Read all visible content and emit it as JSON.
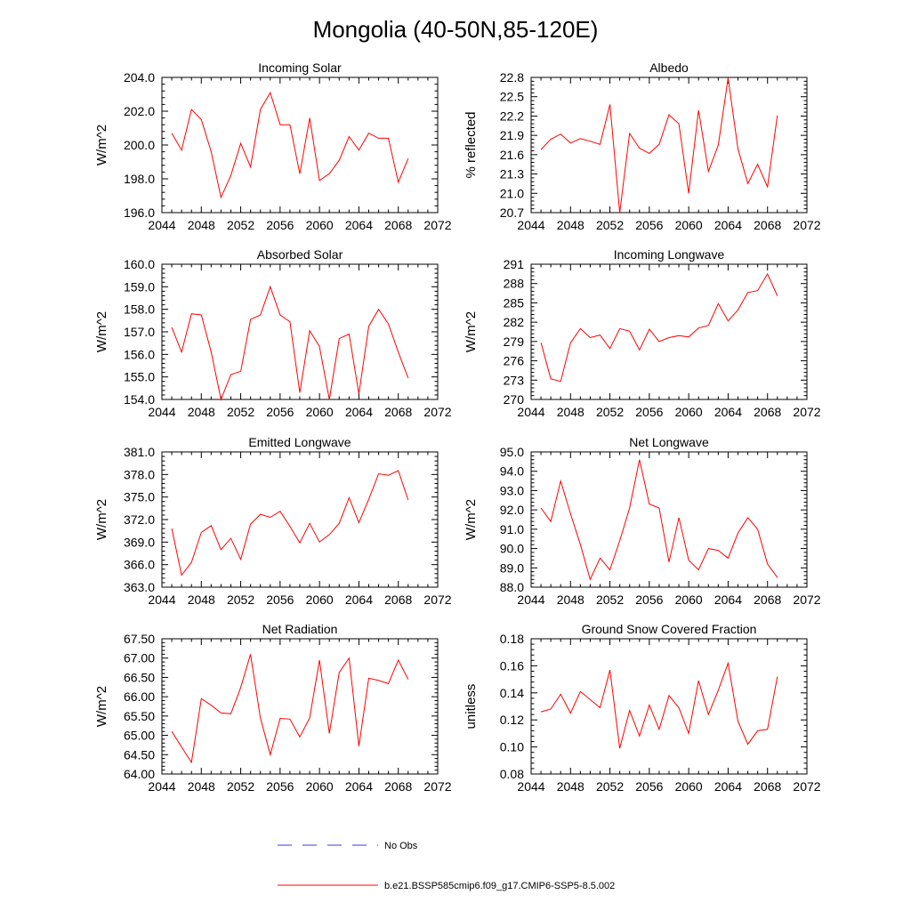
{
  "title": "Mongolia (40-50N,85-120E)",
  "legend": [
    {
      "label": "No Obs",
      "color": "#3b3bd6",
      "style": "dashed"
    },
    {
      "label": "b.e21.BSSP585cmip6.f09_g17.CMIP6-SSP5-8.5.002",
      "color": "#ff0000",
      "style": "solid"
    }
  ],
  "chart_data": [
    {
      "type": "line",
      "title": "Incoming Solar",
      "xlabel": "",
      "ylabel": "W/m^2",
      "xlim": [
        2044,
        2072
      ],
      "ylim": [
        196,
        204
      ],
      "xticks": [
        2044,
        2048,
        2052,
        2056,
        2060,
        2064,
        2068,
        2072
      ],
      "yticks": [
        "196.0",
        "198.0",
        "200.0",
        "202.0",
        "204.0"
      ],
      "x": [
        2045,
        2046,
        2047,
        2048,
        2049,
        2050,
        2051,
        2052,
        2053,
        2054,
        2055,
        2056,
        2057,
        2058,
        2059,
        2060,
        2061,
        2062,
        2063,
        2064,
        2065,
        2066,
        2067,
        2068,
        2069
      ],
      "series": [
        {
          "values": [
            200.7,
            199.7,
            202.1,
            201.5,
            199.6,
            196.9,
            198.2,
            200.1,
            198.7,
            202.1,
            203.1,
            201.2,
            201.2,
            198.3,
            201.6,
            197.9,
            198.3,
            199.1,
            200.5,
            199.7,
            200.7,
            200.4,
            200.4,
            197.8,
            199.2
          ],
          "color": "#ff0000"
        }
      ]
    },
    {
      "type": "line",
      "title": "Albedo",
      "xlabel": "",
      "ylabel": "% reflected",
      "xlim": [
        2044,
        2072
      ],
      "ylim": [
        20.7,
        22.8
      ],
      "xticks": [
        2044,
        2048,
        2052,
        2056,
        2060,
        2064,
        2068,
        2072
      ],
      "yticks": [
        "20.7",
        "21.0",
        "21.3",
        "21.6",
        "21.9",
        "22.2",
        "22.5",
        "22.8"
      ],
      "x": [
        2045,
        2046,
        2047,
        2048,
        2049,
        2050,
        2051,
        2052,
        2053,
        2054,
        2055,
        2056,
        2057,
        2058,
        2059,
        2060,
        2061,
        2062,
        2063,
        2064,
        2065,
        2066,
        2067,
        2068,
        2069
      ],
      "series": [
        {
          "values": [
            21.68,
            21.84,
            21.92,
            21.78,
            21.85,
            21.81,
            21.76,
            22.38,
            20.7,
            21.93,
            21.7,
            21.62,
            21.76,
            22.22,
            22.08,
            21.0,
            22.29,
            21.34,
            21.75,
            22.79,
            21.69,
            21.15,
            21.45,
            21.1,
            22.21
          ],
          "color": "#ff0000"
        }
      ]
    },
    {
      "type": "line",
      "title": "Absorbed Solar",
      "xlabel": "",
      "ylabel": "W/m^2",
      "xlim": [
        2044,
        2072
      ],
      "ylim": [
        154,
        160
      ],
      "xticks": [
        2044,
        2048,
        2052,
        2056,
        2060,
        2064,
        2068,
        2072
      ],
      "yticks": [
        "154.0",
        "155.0",
        "156.0",
        "157.0",
        "158.0",
        "159.0",
        "160.0"
      ],
      "x": [
        2045,
        2046,
        2047,
        2048,
        2049,
        2050,
        2051,
        2052,
        2053,
        2054,
        2055,
        2056,
        2057,
        2058,
        2059,
        2060,
        2061,
        2062,
        2063,
        2064,
        2065,
        2066,
        2067,
        2068,
        2069
      ],
      "series": [
        {
          "values": [
            157.2,
            156.1,
            157.8,
            157.75,
            156.1,
            154.0,
            155.1,
            155.25,
            157.55,
            157.75,
            159.0,
            157.75,
            157.45,
            154.3,
            157.05,
            156.35,
            154.0,
            156.7,
            156.9,
            154.25,
            157.25,
            158.0,
            157.35,
            156.1,
            154.95
          ],
          "color": "#ff0000"
        }
      ]
    },
    {
      "type": "line",
      "title": "Incoming Longwave",
      "xlabel": "",
      "ylabel": "W/m^2",
      "xlim": [
        2044,
        2072
      ],
      "ylim": [
        270,
        291
      ],
      "xticks": [
        2044,
        2048,
        2052,
        2056,
        2060,
        2064,
        2068,
        2072
      ],
      "yticks": [
        "270",
        "273",
        "276",
        "279",
        "282",
        "285",
        "288",
        "291"
      ],
      "x": [
        2045,
        2046,
        2047,
        2048,
        2049,
        2050,
        2051,
        2052,
        2053,
        2054,
        2055,
        2056,
        2057,
        2058,
        2059,
        2060,
        2061,
        2062,
        2063,
        2064,
        2065,
        2066,
        2067,
        2068,
        2069
      ],
      "series": [
        {
          "values": [
            278.8,
            273.2,
            272.8,
            278.8,
            281.0,
            279.6,
            280.0,
            277.9,
            281.0,
            280.6,
            277.7,
            280.9,
            279.0,
            279.6,
            279.9,
            279.7,
            281.1,
            281.5,
            284.9,
            282.2,
            283.9,
            286.6,
            286.9,
            289.5,
            286.1
          ],
          "color": "#ff0000"
        }
      ]
    },
    {
      "type": "line",
      "title": "Emitted Longwave",
      "xlabel": "",
      "ylabel": "W/m^2",
      "xlim": [
        2044,
        2072
      ],
      "ylim": [
        363,
        381
      ],
      "xticks": [
        2044,
        2048,
        2052,
        2056,
        2060,
        2064,
        2068,
        2072
      ],
      "yticks": [
        "363.0",
        "366.0",
        "369.0",
        "372.0",
        "375.0",
        "378.0",
        "381.0"
      ],
      "x": [
        2045,
        2046,
        2047,
        2048,
        2049,
        2050,
        2051,
        2052,
        2053,
        2054,
        2055,
        2056,
        2057,
        2058,
        2059,
        2060,
        2061,
        2062,
        2063,
        2064,
        2065,
        2066,
        2067,
        2068,
        2069
      ],
      "series": [
        {
          "values": [
            370.8,
            364.6,
            366.3,
            370.3,
            371.2,
            368.0,
            369.5,
            366.7,
            371.4,
            372.7,
            372.3,
            373.1,
            371.1,
            368.9,
            371.5,
            369.0,
            370.0,
            371.5,
            374.9,
            371.6,
            374.7,
            378.1,
            377.9,
            378.5,
            374.6
          ],
          "color": "#ff0000"
        }
      ]
    },
    {
      "type": "line",
      "title": "Net Longwave",
      "xlabel": "",
      "ylabel": "W/m^2",
      "xlim": [
        2044,
        2072
      ],
      "ylim": [
        88,
        95
      ],
      "xticks": [
        2044,
        2048,
        2052,
        2056,
        2060,
        2064,
        2068,
        2072
      ],
      "yticks": [
        "88.0",
        "89.0",
        "90.0",
        "91.0",
        "92.0",
        "93.0",
        "94.0",
        "95.0"
      ],
      "x": [
        2045,
        2046,
        2047,
        2048,
        2049,
        2050,
        2051,
        2052,
        2053,
        2054,
        2055,
        2056,
        2057,
        2058,
        2059,
        2060,
        2061,
        2062,
        2063,
        2064,
        2065,
        2066,
        2067,
        2068,
        2069
      ],
      "series": [
        {
          "values": [
            92.1,
            91.4,
            93.5,
            91.8,
            90.2,
            88.4,
            89.5,
            88.9,
            90.4,
            92.1,
            94.6,
            92.3,
            92.1,
            89.3,
            91.6,
            89.4,
            88.9,
            90.0,
            89.9,
            89.5,
            90.8,
            91.6,
            91.0,
            89.2,
            88.5
          ],
          "color": "#ff0000"
        }
      ]
    },
    {
      "type": "line",
      "title": "Net Radiation",
      "xlabel": "",
      "ylabel": "W/m^2",
      "xlim": [
        2044,
        2072
      ],
      "ylim": [
        64.0,
        67.5
      ],
      "xticks": [
        2044,
        2048,
        2052,
        2056,
        2060,
        2064,
        2068,
        2072
      ],
      "yticks": [
        "64.00",
        "64.50",
        "65.00",
        "65.50",
        "66.00",
        "66.50",
        "67.00",
        "67.50"
      ],
      "x": [
        2045,
        2046,
        2047,
        2048,
        2049,
        2050,
        2051,
        2052,
        2053,
        2054,
        2055,
        2056,
        2057,
        2058,
        2059,
        2060,
        2061,
        2062,
        2063,
        2064,
        2065,
        2066,
        2067,
        2068,
        2069
      ],
      "series": [
        {
          "values": [
            65.1,
            64.7,
            64.3,
            65.95,
            65.78,
            65.58,
            65.56,
            66.24,
            67.1,
            65.45,
            64.5,
            65.44,
            65.42,
            64.96,
            65.45,
            66.95,
            65.05,
            66.63,
            67.0,
            64.72,
            66.48,
            66.42,
            66.34,
            66.95,
            66.45
          ],
          "color": "#ff0000"
        }
      ]
    },
    {
      "type": "line",
      "title": "Ground Snow Covered Fraction",
      "xlabel": "",
      "ylabel": "unitless",
      "xlim": [
        2044,
        2072
      ],
      "ylim": [
        0.08,
        0.18
      ],
      "xticks": [
        2044,
        2048,
        2052,
        2056,
        2060,
        2064,
        2068,
        2072
      ],
      "yticks": [
        "0.08",
        "0.10",
        "0.12",
        "0.14",
        "0.16",
        "0.18"
      ],
      "x": [
        2045,
        2046,
        2047,
        2048,
        2049,
        2050,
        2051,
        2052,
        2053,
        2054,
        2055,
        2056,
        2057,
        2058,
        2059,
        2060,
        2061,
        2062,
        2063,
        2064,
        2065,
        2066,
        2067,
        2068,
        2069
      ],
      "series": [
        {
          "values": [
            0.126,
            0.128,
            0.139,
            0.125,
            0.141,
            0.135,
            0.129,
            0.157,
            0.099,
            0.127,
            0.108,
            0.131,
            0.113,
            0.138,
            0.129,
            0.11,
            0.149,
            0.124,
            0.142,
            0.162,
            0.119,
            0.102,
            0.112,
            0.113,
            0.152
          ],
          "color": "#ff0000"
        }
      ]
    }
  ]
}
